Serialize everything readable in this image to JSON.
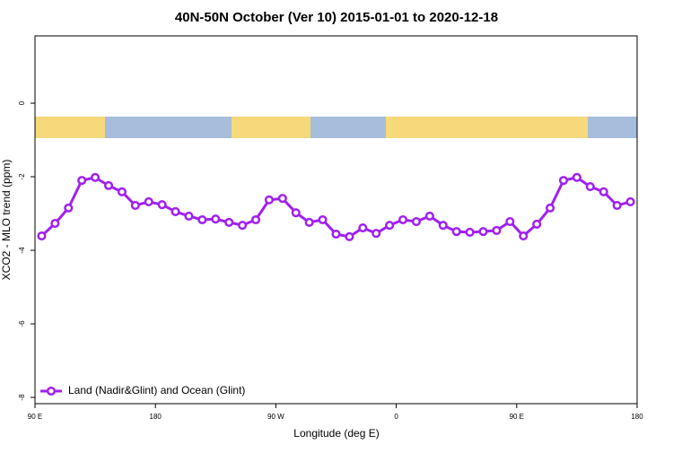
{
  "chart_data": {
    "type": "line",
    "title": "40N-50N October (Ver 10)   2015-01-01 to 2020-12-18",
    "x_label": "Longitude (deg E)",
    "y_label": "XCO2 - MLO trend (ppm)",
    "x": [
      95,
      105,
      115,
      125,
      135,
      145,
      155,
      165,
      175,
      185,
      195,
      205,
      215,
      225,
      235,
      245,
      255,
      265,
      275,
      285,
      295,
      305,
      315,
      325,
      335,
      345,
      355,
      365,
      375,
      385,
      395,
      405,
      415,
      425,
      435,
      445,
      455,
      465,
      475,
      485,
      495,
      505,
      515,
      525,
      535
    ],
    "series": [
      {
        "name": "Land (Nadir&Glint) and Ocean (Glint)",
        "color": "#a020f0",
        "values": [
          -3.61,
          -3.27,
          -2.85,
          -2.1,
          -2.02,
          -2.24,
          -2.41,
          -2.78,
          -2.68,
          -2.76,
          -2.95,
          -3.07,
          -3.17,
          -3.15,
          -3.24,
          -3.32,
          -3.17,
          -2.63,
          -2.59,
          -2.98,
          -3.24,
          -3.17,
          -3.56,
          -3.63,
          -3.39,
          -3.54,
          -3.32,
          -3.17,
          -3.22,
          -3.07,
          -3.32,
          -3.49,
          -3.51,
          -3.49,
          -3.46,
          -3.22,
          -3.61,
          -3.29,
          -2.85,
          -2.1,
          -2.02,
          -2.27,
          -2.41,
          -2.78,
          -2.68
        ]
      }
    ],
    "xlim": [
      90,
      540
    ],
    "xticks": [
      {
        "value": 90,
        "label": "90 E"
      },
      180,
      {
        "value": 270,
        "label": "90 W"
      },
      {
        "value": 360,
        "label": "0"
      },
      {
        "value": 450,
        "label": "90 E"
      },
      {
        "value": 540,
        "label": "180"
      }
    ],
    "ylim": [
      -8.17,
      1.83
    ],
    "yticks": [
      0,
      -2,
      -4,
      -6,
      -8
    ],
    "legend": "bottom-left"
  }
}
